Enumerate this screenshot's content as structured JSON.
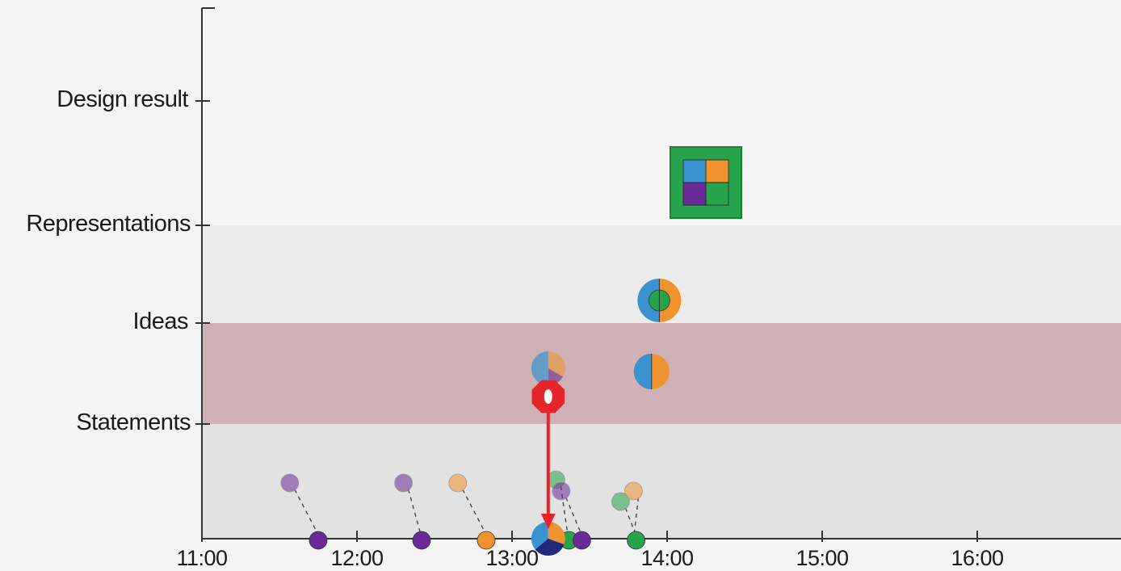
{
  "y_levels": [
    {
      "label": "Design result",
      "value": 4
    },
    {
      "label": "Representations",
      "value": 3
    },
    {
      "label": "Ideas",
      "value": 2
    },
    {
      "label": "Statements",
      "value": 1
    }
  ],
  "x_ticks": [
    "11:00",
    "12:00",
    "13:00",
    "14:00",
    "15:00",
    "16:00"
  ],
  "colors": {
    "blue": "#3a93cf",
    "orange": "#f0922f",
    "green": "#27a34b",
    "purple": "#6a2a98",
    "navy": "#1f2a7a",
    "red": "#e8242b",
    "band_ideas": "#cfb0b4",
    "band_representations": "#ececec",
    "band_statements": "#e2e2e2"
  },
  "events": {
    "statements_faded": [
      {
        "time": "11:34",
        "color": "purple"
      },
      {
        "time": "12:18",
        "color": "purple"
      },
      {
        "time": "12:39",
        "color": "orange"
      },
      {
        "time": "13:17",
        "color": "green"
      },
      {
        "time": "13:19",
        "color": "purple"
      },
      {
        "time": "13:42",
        "color": "green"
      },
      {
        "time": "13:47",
        "color": "orange"
      }
    ],
    "statements": [
      {
        "time": "11:45",
        "color": "purple"
      },
      {
        "time": "12:25",
        "color": "purple"
      },
      {
        "time": "12:50",
        "color": "orange"
      },
      {
        "time": "13:22",
        "color": "green"
      },
      {
        "time": "13:27",
        "color": "purple"
      },
      {
        "time": "13:48",
        "color": "green"
      }
    ],
    "combined_statement": {
      "time": "13:14",
      "colors": [
        "blue",
        "orange",
        "navy"
      ]
    },
    "ideas": [
      {
        "time": "13:14",
        "colors": [
          "blue",
          "orange",
          "purple"
        ],
        "faded": true
      },
      {
        "time": "13:54",
        "colors": [
          "blue",
          "orange"
        ]
      }
    ],
    "representation": {
      "time": "13:57",
      "outer": [
        "blue",
        "orange"
      ],
      "inner": "green"
    },
    "design_result": {
      "time": "14:15",
      "quadrants": [
        "blue",
        "orange",
        "purple",
        "green"
      ]
    },
    "stop_marker": {
      "time": "13:14"
    }
  }
}
